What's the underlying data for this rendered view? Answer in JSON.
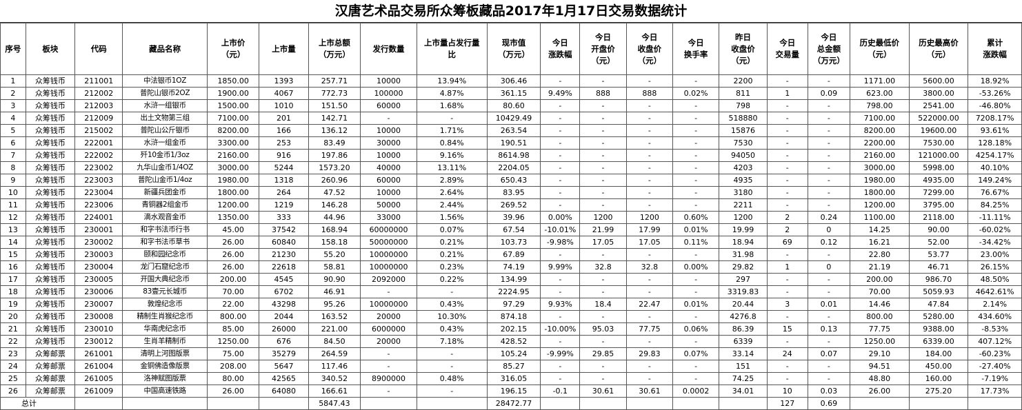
{
  "title": "汉唐艺术品交易所众筹板藏品2017年1月17日交易数据统计",
  "columns": [
    "序号",
    "板块",
    "代码",
    "藏品名称",
    "上市价\n（元）",
    "上市量",
    "上市总额\n（万元）",
    "发行数量",
    "上市量占发行量\n比",
    "现市值\n（万元）",
    "今日\n涨跌幅",
    "今日\n开盘价\n（元）",
    "今日\n收盘价\n（元）",
    "今日\n换手率",
    "昨日\n收盘价\n（元）",
    "今日\n交易量",
    "今日\n总金额\n（万元）",
    "历史最低价\n（元）",
    "历史最高价\n（元）",
    "累计\n涨跌幅"
  ],
  "rows": [
    [
      "1",
      "众筹钱币",
      "211001",
      "中法银币1OZ",
      "1850.00",
      "1393",
      "257.71",
      "10000",
      "13.94%",
      "306.46",
      "-",
      "-",
      "-",
      "-",
      "2200",
      "-",
      "-",
      "1171.00",
      "5600.00",
      "18.92%"
    ],
    [
      "2",
      "众筹钱币",
      "212002",
      "普陀山银币2OZ",
      "1900.00",
      "4067",
      "772.73",
      "100000",
      "4.87%",
      "361.15",
      "9.49%",
      "888",
      "888",
      "0.02%",
      "811",
      "1",
      "0.09",
      "623.00",
      "3800.00",
      "-53.26%"
    ],
    [
      "3",
      "众筹钱币",
      "212003",
      "水浒一组银币",
      "1500.00",
      "1010",
      "151.50",
      "60000",
      "1.68%",
      "80.60",
      "-",
      "-",
      "-",
      "-",
      "798",
      "-",
      "-",
      "798.00",
      "2541.00",
      "-46.80%"
    ],
    [
      "4",
      "众筹钱币",
      "212009",
      "出土文物第三组",
      "7100.00",
      "201",
      "142.71",
      "-",
      "-",
      "10429.49",
      "-",
      "-",
      "-",
      "-",
      "518880",
      "-",
      "-",
      "7100.00",
      "522000.00",
      "7208.17%"
    ],
    [
      "5",
      "众筹钱币",
      "215002",
      "普陀山公斤银币",
      "8200.00",
      "166",
      "136.12",
      "10000",
      "1.71%",
      "263.54",
      "-",
      "-",
      "-",
      "-",
      "15876",
      "-",
      "-",
      "8200.00",
      "19600.00",
      "93.61%"
    ],
    [
      "6",
      "众筹钱币",
      "222001",
      "水浒一组金币",
      "3300.00",
      "253",
      "83.49",
      "30000",
      "0.84%",
      "190.51",
      "-",
      "-",
      "-",
      "-",
      "7530",
      "-",
      "-",
      "2200.00",
      "7530.00",
      "128.18%"
    ],
    [
      "7",
      "众筹钱币",
      "222002",
      "歼10金币1/3oz",
      "2160.00",
      "916",
      "197.86",
      "10000",
      "9.16%",
      "8614.98",
      "-",
      "-",
      "-",
      "-",
      "94050",
      "-",
      "-",
      "2160.00",
      "121000.00",
      "4254.17%"
    ],
    [
      "8",
      "众筹钱币",
      "223002",
      "九华山金币1/4OZ",
      "3000.00",
      "5244",
      "1573.20",
      "40000",
      "13.11%",
      "2204.05",
      "-",
      "-",
      "-",
      "-",
      "4203",
      "-",
      "-",
      "3000.00",
      "5998.00",
      "40.10%"
    ],
    [
      "9",
      "众筹钱币",
      "223003",
      "普陀山金币1/4oz",
      "1980.00",
      "1318",
      "260.96",
      "60000",
      "2.89%",
      "650.43",
      "-",
      "-",
      "-",
      "-",
      "4935",
      "-",
      "-",
      "1980.00",
      "4935.00",
      "149.24%"
    ],
    [
      "10",
      "众筹钱币",
      "223004",
      "新疆兵团金币",
      "1800.00",
      "264",
      "47.52",
      "10000",
      "2.64%",
      "83.95",
      "-",
      "-",
      "-",
      "-",
      "3180",
      "-",
      "-",
      "1800.00",
      "7299.00",
      "76.67%"
    ],
    [
      "11",
      "众筹钱币",
      "223006",
      "青铜器2组金币",
      "1200.00",
      "1219",
      "146.28",
      "50000",
      "2.44%",
      "269.52",
      "-",
      "-",
      "-",
      "-",
      "2211",
      "-",
      "-",
      "1200.00",
      "3795.00",
      "84.25%"
    ],
    [
      "12",
      "众筹钱币",
      "224001",
      "滴水观音金币",
      "1350.00",
      "333",
      "44.96",
      "33000",
      "1.56%",
      "39.96",
      "0.00%",
      "1200",
      "1200",
      "0.60%",
      "1200",
      "2",
      "0.24",
      "1100.00",
      "2118.00",
      "-11.11%"
    ],
    [
      "13",
      "众筹钱币",
      "230001",
      "和字书法币行书",
      "45.00",
      "37542",
      "168.94",
      "60000000",
      "0.07%",
      "67.54",
      "-10.01%",
      "21.99",
      "17.99",
      "0.01%",
      "19.99",
      "2",
      "0",
      "14.25",
      "90.00",
      "-60.02%"
    ],
    [
      "14",
      "众筹钱币",
      "230002",
      "和字书法币草书",
      "26.00",
      "60840",
      "158.18",
      "50000000",
      "0.21%",
      "103.73",
      "-9.98%",
      "17.05",
      "17.05",
      "0.11%",
      "18.94",
      "69",
      "0.12",
      "16.21",
      "52.00",
      "-34.42%"
    ],
    [
      "15",
      "众筹钱币",
      "230003",
      "颐和园纪念币",
      "26.00",
      "21230",
      "55.20",
      "10000000",
      "0.21%",
      "67.89",
      "-",
      "-",
      "-",
      "-",
      "31.98",
      "-",
      "-",
      "22.80",
      "53.77",
      "23.00%"
    ],
    [
      "16",
      "众筹钱币",
      "230004",
      "龙门石窟纪念币",
      "26.00",
      "22618",
      "58.81",
      "10000000",
      "0.23%",
      "74.19",
      "9.99%",
      "32.8",
      "32.8",
      "0.00%",
      "29.82",
      "1",
      "0",
      "21.19",
      "46.71",
      "26.15%"
    ],
    [
      "17",
      "众筹钱币",
      "230005",
      "开国大典纪念币",
      "200.00",
      "4545",
      "90.90",
      "2092000",
      "0.22%",
      "134.99",
      "-",
      "-",
      "-",
      "-",
      "297",
      "-",
      "-",
      "200.00",
      "986.70",
      "48.50%"
    ],
    [
      "18",
      "众筹钱币",
      "230006",
      "83壹元长城币",
      "70.00",
      "6702",
      "46.91",
      "-",
      "-",
      "2224.95",
      "-",
      "-",
      "-",
      "-",
      "3319.83",
      "-",
      "-",
      "70.00",
      "5059.93",
      "4642.61%"
    ],
    [
      "19",
      "众筹钱币",
      "230007",
      "敦煌纪念币",
      "22.00",
      "43298",
      "95.26",
      "10000000",
      "0.43%",
      "97.29",
      "9.93%",
      "18.4",
      "22.47",
      "0.01%",
      "20.44",
      "3",
      "0.01",
      "14.46",
      "47.84",
      "2.14%"
    ],
    [
      "20",
      "众筹钱币",
      "230008",
      "精制生肖猴纪念币",
      "800.00",
      "2044",
      "163.52",
      "20000",
      "10.30%",
      "874.18",
      "-",
      "-",
      "-",
      "-",
      "4276.8",
      "-",
      "-",
      "800.00",
      "5280.00",
      "434.60%"
    ],
    [
      "21",
      "众筹钱币",
      "230010",
      "华南虎纪念币",
      "85.00",
      "26000",
      "221.00",
      "6000000",
      "0.43%",
      "202.15",
      "-10.00%",
      "95.03",
      "77.75",
      "0.06%",
      "86.39",
      "15",
      "0.13",
      "77.75",
      "9388.00",
      "-8.53%"
    ],
    [
      "22",
      "众筹钱币",
      "230012",
      "生肖羊精制币",
      "1250.00",
      "676",
      "84.50",
      "20000",
      "7.18%",
      "428.52",
      "-",
      "-",
      "-",
      "-",
      "6339",
      "-",
      "-",
      "1250.00",
      "6339.00",
      "407.12%"
    ],
    [
      "23",
      "众筹邮票",
      "261001",
      "清明上河图版票",
      "75.00",
      "35279",
      "264.59",
      "-",
      "-",
      "105.24",
      "-9.99%",
      "29.85",
      "29.83",
      "0.07%",
      "33.14",
      "24",
      "0.07",
      "29.10",
      "184.00",
      "-60.23%"
    ],
    [
      "24",
      "众筹邮票",
      "261004",
      "金铜佛造像版票",
      "208.00",
      "5647",
      "117.46",
      "-",
      "-",
      "85.27",
      "-",
      "-",
      "-",
      "-",
      "151",
      "-",
      "-",
      "94.51",
      "450.00",
      "-27.40%"
    ],
    [
      "25",
      "众筹邮票",
      "261005",
      "洛神赋图版票",
      "80.00",
      "42565",
      "340.52",
      "8900000",
      "0.48%",
      "316.05",
      "-",
      "-",
      "-",
      "-",
      "74.25",
      "-",
      "-",
      "48.80",
      "160.00",
      "-7.19%"
    ],
    [
      "26",
      "众筹邮票",
      "261009",
      "中国高速铁路",
      "26.00",
      "64080",
      "166.61",
      "-",
      "-",
      "196.15",
      "-0.1",
      "30.61",
      "30.61",
      "0.0002",
      "34.01",
      "10",
      "0.03",
      "26.00",
      "275.20",
      "17.73%"
    ]
  ],
  "total": {
    "label": "总计",
    "total_amount": "5847.43",
    "market_value": "28472.77",
    "volume": "127",
    "turnover": "0.69"
  }
}
